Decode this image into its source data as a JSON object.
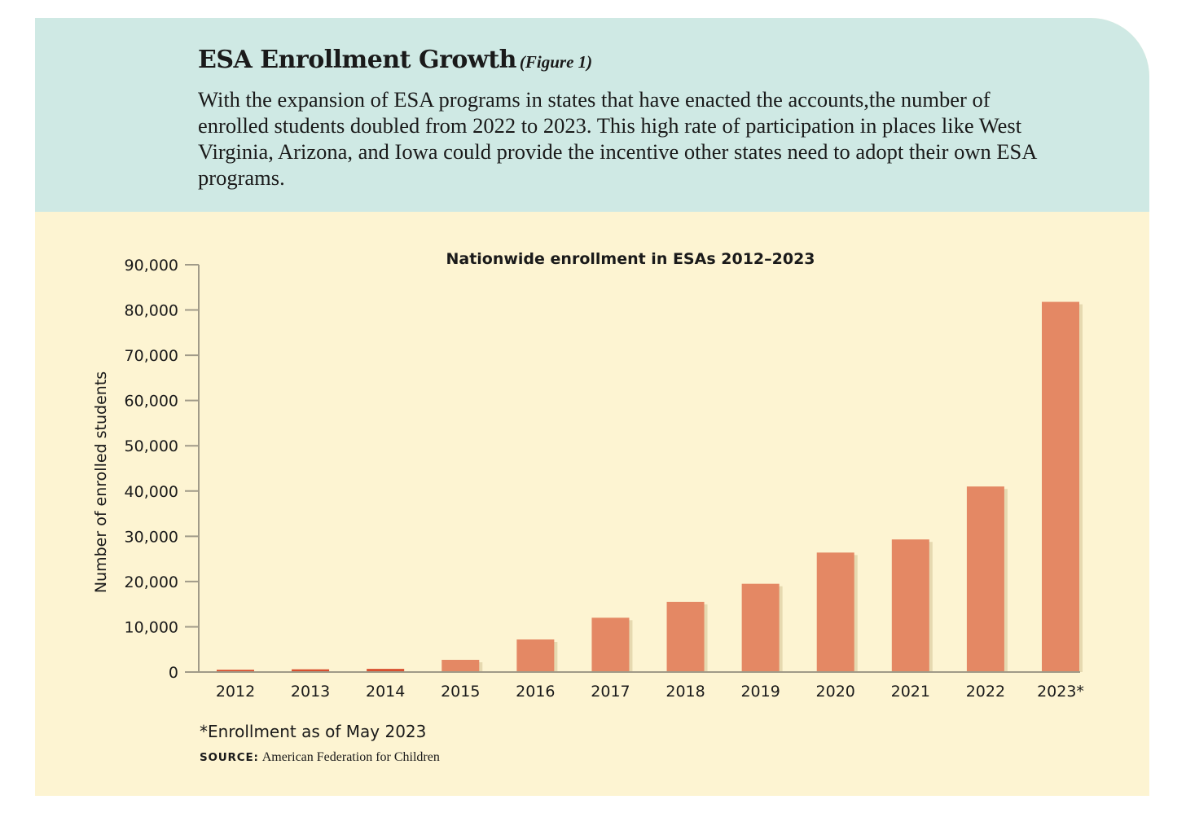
{
  "header": {
    "title": "ESA Enrollment Growth",
    "figure_label": "(Figure 1)",
    "description": "With the expansion of ESA programs in states that have enacted the accounts,the number of enrolled students doubled from 2022 to 2023. This high rate of participation in places like West Virginia, Arizona, and Iowa could provide the incentive other states need to adopt their own ESA programs."
  },
  "chart_data": {
    "type": "bar",
    "title": "Nationwide enrollment in ESAs 2012–2023",
    "xlabel": "",
    "ylabel": "Number of enrolled students",
    "categories": [
      "2012",
      "2013",
      "2014",
      "2015",
      "2016",
      "2017",
      "2018",
      "2019",
      "2020",
      "2021",
      "2022",
      "2023*"
    ],
    "values": [
      500,
      600,
      700,
      2700,
      7200,
      12000,
      15500,
      19500,
      26400,
      29300,
      41000,
      81800
    ],
    "ylim": [
      0,
      90000
    ],
    "yticks": [
      "0",
      "10,000",
      "20,000",
      "30,000",
      "40,000",
      "50,000",
      "60,000",
      "70,000",
      "80,000",
      "90,000"
    ],
    "grid": false,
    "legend": "none",
    "bar_color": "#e48864",
    "small_bar_color": "#d9502f"
  },
  "notes": {
    "footnote": "*Enrollment as of May 2023",
    "source_label": "SOURCE:",
    "source_text": "American Federation for Children"
  }
}
